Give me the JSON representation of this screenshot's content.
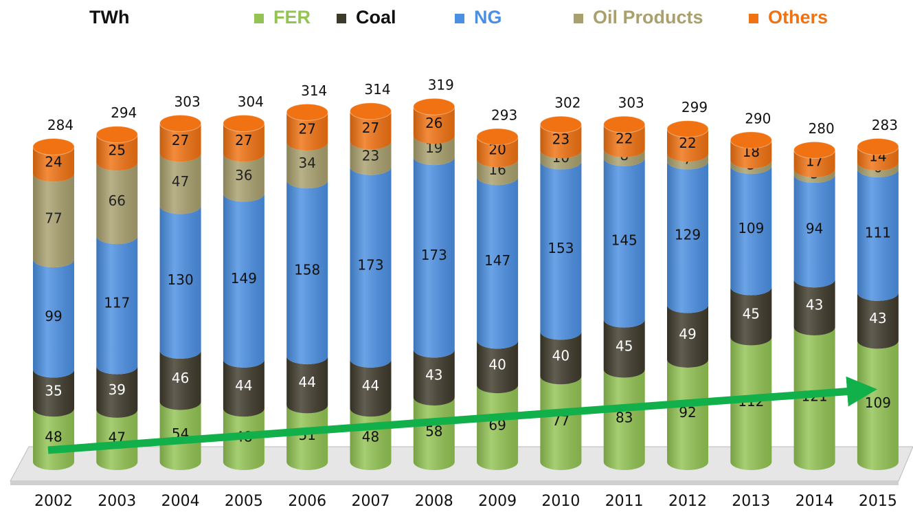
{
  "chart_data": {
    "type": "stacked_bar_3d",
    "unit_label": "TWh",
    "categories": [
      "2002",
      "2003",
      "2004",
      "2005",
      "2006",
      "2007",
      "2008",
      "2009",
      "2010",
      "2011",
      "2012",
      "2013",
      "2014",
      "2015"
    ],
    "series": [
      {
        "name": "FER",
        "color": "#92c353",
        "values": [
          48,
          47,
          54,
          48,
          51,
          48,
          58,
          69,
          77,
          83,
          92,
          112,
          121,
          109
        ]
      },
      {
        "name": "Coal",
        "color": "#3e3a2b",
        "values": [
          35,
          39,
          46,
          44,
          44,
          44,
          43,
          40,
          40,
          45,
          49,
          45,
          43,
          43
        ]
      },
      {
        "name": "NG",
        "color": "#4b8fe2",
        "values": [
          99,
          117,
          130,
          149,
          158,
          173,
          173,
          147,
          153,
          145,
          129,
          109,
          94,
          111
        ]
      },
      {
        "name": "Oil Products",
        "color": "#a9a06e",
        "values": [
          77,
          66,
          47,
          36,
          34,
          23,
          19,
          16,
          10,
          8,
          7,
          5,
          5,
          6
        ]
      },
      {
        "name": "Others",
        "color": "#f07212",
        "values": [
          24,
          25,
          27,
          27,
          27,
          27,
          26,
          20,
          23,
          22,
          22,
          18,
          17,
          14
        ]
      }
    ],
    "totals": [
      284,
      294,
      303,
      304,
      314,
      314,
      319,
      293,
      302,
      303,
      299,
      290,
      280,
      283
    ]
  }
}
